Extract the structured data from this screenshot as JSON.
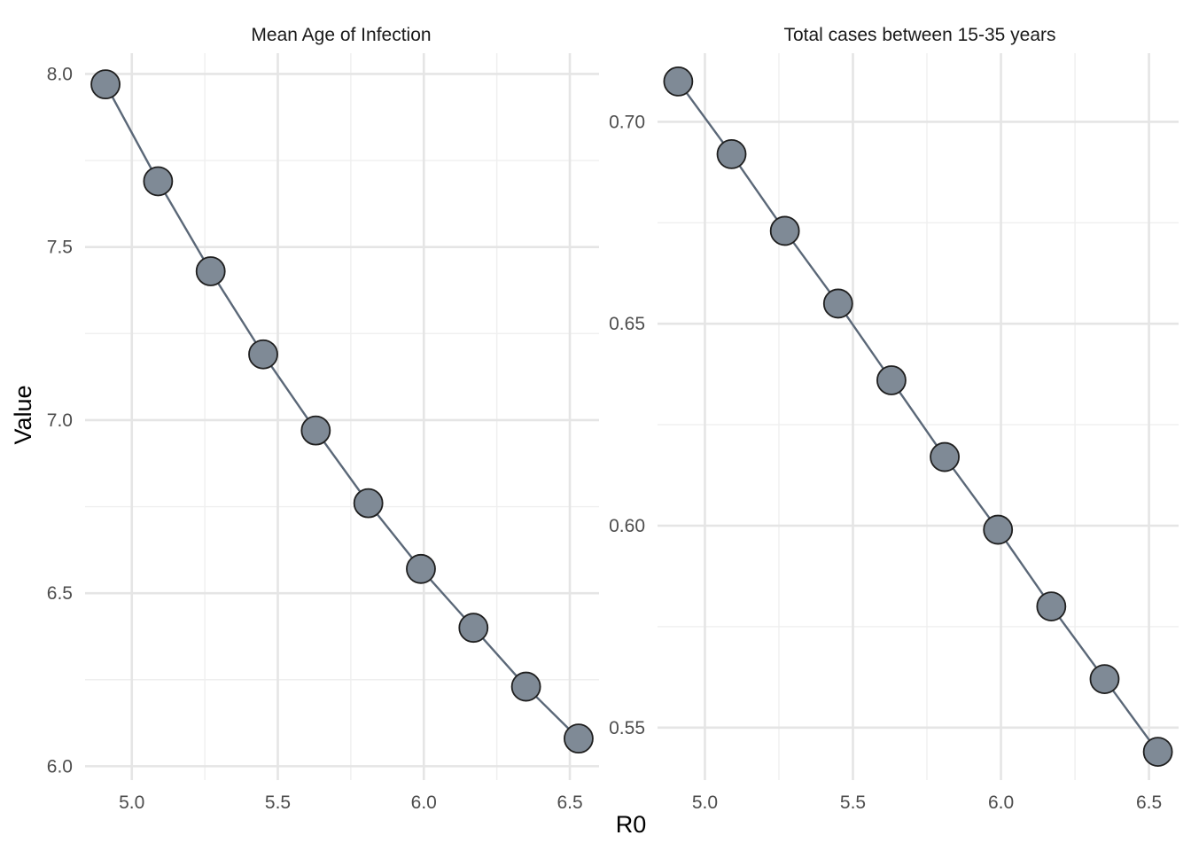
{
  "colors": {
    "line": "#5b6878",
    "point_fill": "#7f8a96",
    "point_stroke": "#1f1f1f",
    "grid_major": "#e5e5e5",
    "grid_minor": "#efefef",
    "background": "#ffffff"
  },
  "figure": {
    "xlabel": "R0",
    "ylabel": "Value"
  },
  "chart_data": [
    {
      "type": "line",
      "title": "Mean Age of Infection",
      "xlabel": "R0",
      "ylabel": "Value",
      "x": [
        4.91,
        5.09,
        5.27,
        5.45,
        5.63,
        5.81,
        5.99,
        6.17,
        6.35,
        6.53
      ],
      "series": [
        {
          "values": [
            7.97,
            7.69,
            7.43,
            7.19,
            6.97,
            6.76,
            6.57,
            6.4,
            6.23,
            6.08
          ]
        }
      ],
      "xlim": [
        4.84,
        6.6
      ],
      "ylim": [
        5.96,
        8.06
      ],
      "xticks": [
        5.0,
        5.5,
        6.0,
        6.5
      ],
      "xtick_labels": [
        "5.0",
        "5.5",
        "6.0",
        "6.5"
      ],
      "yticks": [
        6.0,
        6.5,
        7.0,
        7.5,
        8.0
      ],
      "ytick_labels": [
        "6.0",
        "6.5",
        "7.0",
        "7.5",
        "8.0"
      ],
      "grid": true,
      "markers": "circle"
    },
    {
      "type": "line",
      "title": "Total cases between 15-35 years",
      "xlabel": "R0",
      "ylabel": "Value",
      "x": [
        4.91,
        5.09,
        5.27,
        5.45,
        5.63,
        5.81,
        5.99,
        6.17,
        6.35,
        6.53
      ],
      "series": [
        {
          "values": [
            0.71,
            0.692,
            0.673,
            0.655,
            0.636,
            0.617,
            0.599,
            0.58,
            0.562,
            0.544
          ]
        }
      ],
      "xlim": [
        4.84,
        6.6
      ],
      "ylim": [
        0.537,
        0.717
      ],
      "xticks": [
        5.0,
        5.5,
        6.0,
        6.5
      ],
      "xtick_labels": [
        "5.0",
        "5.5",
        "6.0",
        "6.5"
      ],
      "yticks": [
        0.55,
        0.6,
        0.65,
        0.7
      ],
      "ytick_labels": [
        "0.55",
        "0.60",
        "0.65",
        "0.70"
      ],
      "grid": true,
      "markers": "circle"
    }
  ]
}
